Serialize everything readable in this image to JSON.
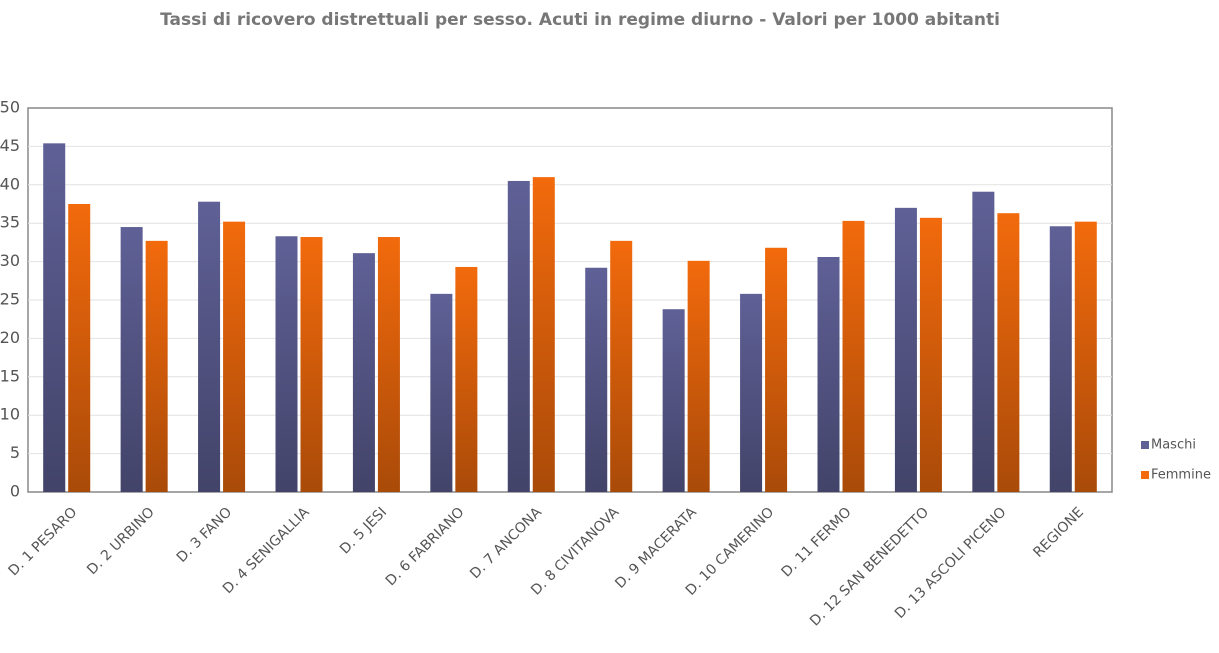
{
  "chart_data": {
    "type": "bar",
    "title": "Tassi di ricovero distrettuali per sesso. Acuti in regime diurno - Valori per 1000 abitanti",
    "categories": [
      "D. 1 PESARO",
      "D. 2 URBINO",
      "D. 3 FANO",
      "D. 4 SENIGALLIA",
      "D. 5 JESI",
      "D. 6 FABRIANO",
      "D. 7 ANCONA",
      "D. 8 CIVITANOVA",
      "D. 9 MACERATA",
      "D. 10 CAMERINO",
      "D. 11 FERMO",
      "D. 12 SAN BENEDETTO",
      "D. 13 ASCOLI PICENO",
      "REGIONE"
    ],
    "series": [
      {
        "name": "Maschi",
        "color": "#5f6096",
        "values": [
          45.4,
          34.5,
          37.8,
          33.3,
          31.1,
          25.8,
          40.5,
          29.2,
          23.8,
          25.8,
          30.6,
          37.0,
          39.1,
          34.6
        ]
      },
      {
        "name": "Femmine",
        "color": "#f26a0c",
        "values": [
          37.5,
          32.7,
          35.2,
          33.2,
          33.2,
          29.3,
          41.0,
          32.7,
          30.1,
          31.8,
          35.3,
          35.7,
          36.3,
          35.2
        ]
      }
    ],
    "ylim": [
      0,
      50
    ],
    "yticks": [
      0,
      5,
      10,
      15,
      20,
      25,
      30,
      35,
      40,
      45,
      50
    ],
    "grid": true,
    "legend": "right"
  }
}
